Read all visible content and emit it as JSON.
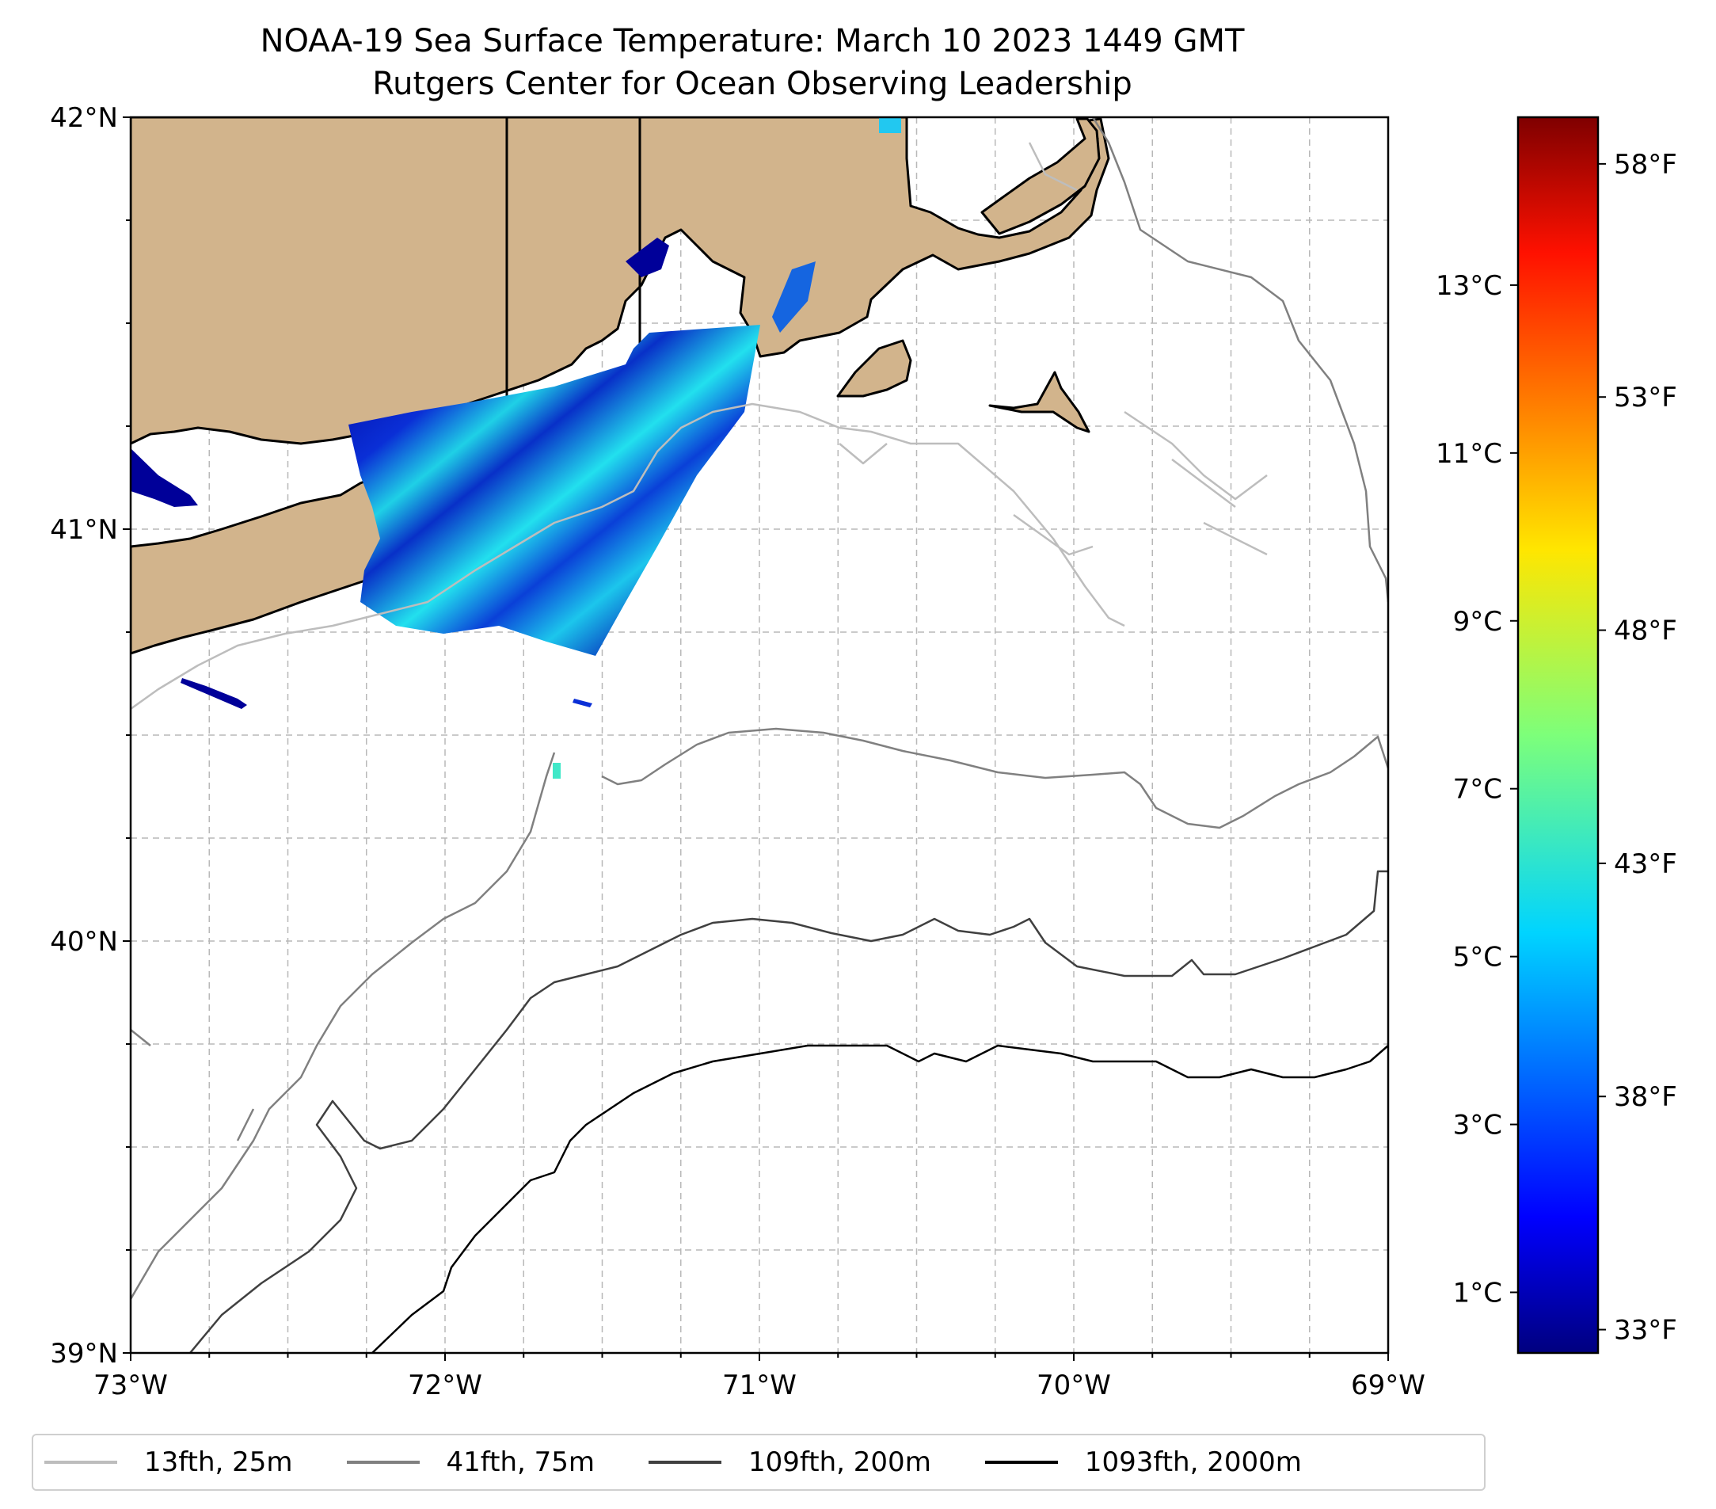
{
  "title": {
    "line1": "NOAA-19 Sea Surface Temperature: March 10 2023 1449 GMT",
    "line2": "Rutgers Center for Ocean Observing Leadership"
  },
  "map": {
    "lon_range": [
      -73,
      -69
    ],
    "lat_range": [
      39,
      42
    ],
    "lat_labels": [
      "42°N",
      "41°N",
      "40°N",
      "39°N"
    ],
    "lon_labels": [
      "73°W",
      "72°W",
      "71°W",
      "70°W",
      "69°W"
    ],
    "colors": {
      "land": "#d2b48c",
      "grid": "#b0b0b0",
      "coast": "#000000"
    }
  },
  "colorbar": {
    "celsius_labels": [
      "13°C",
      "11°C",
      "9°C",
      "7°C",
      "5°C",
      "3°C",
      "1°C"
    ],
    "celsius_values": [
      13,
      11,
      9,
      7,
      5,
      3,
      1
    ],
    "fahrenheit_labels": [
      "58°F",
      "53°F",
      "48°F",
      "43°F",
      "38°F",
      "33°F"
    ],
    "fahrenheit_values": [
      58,
      53,
      48,
      43,
      38,
      33
    ],
    "range_f": [
      32.5,
      59
    ]
  },
  "legend": {
    "items": [
      {
        "label": "13fth, 25m",
        "color": "#bdbdbd"
      },
      {
        "label": "41fth, 75m",
        "color": "#808080"
      },
      {
        "label": "109fth, 200m",
        "color": "#404040"
      },
      {
        "label": "1093fth, 2000m",
        "color": "#000000"
      }
    ]
  }
}
